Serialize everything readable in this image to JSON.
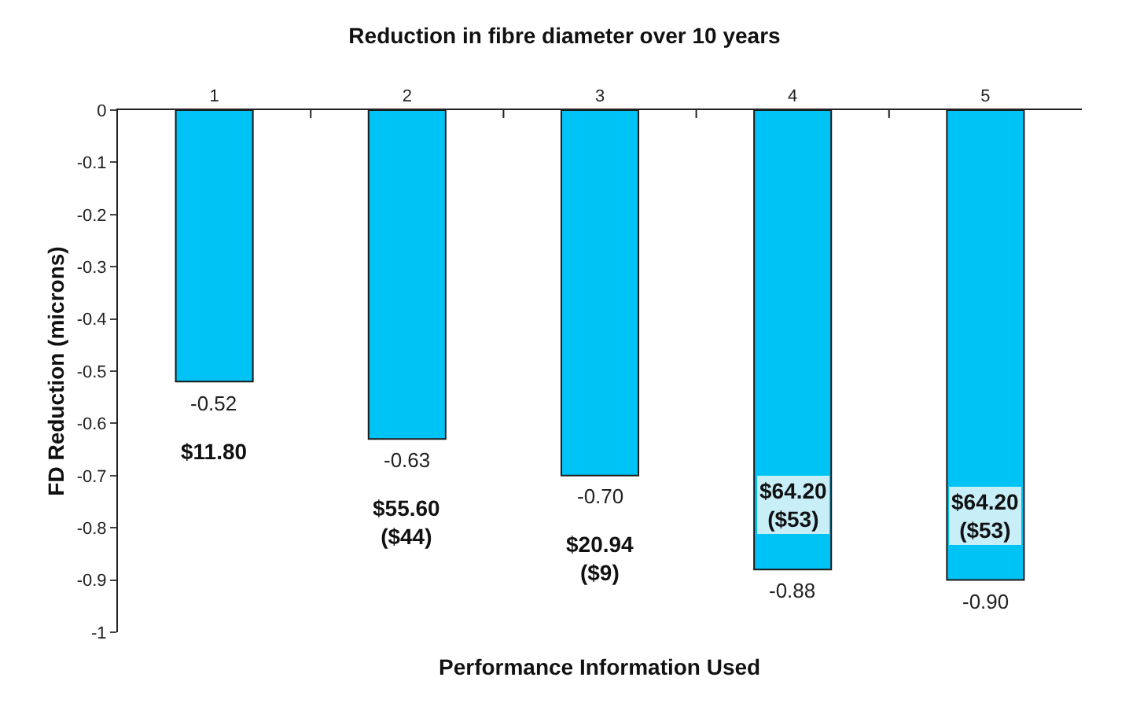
{
  "chart_data": {
    "type": "bar",
    "title": "Reduction in fibre diameter over 10 years",
    "xlabel": "Performance Information Used",
    "ylabel": "FD Reduction (microns)",
    "categories": [
      "1",
      "2",
      "3",
      "4",
      "5"
    ],
    "values": [
      -0.52,
      -0.63,
      -0.7,
      -0.88,
      -0.9
    ],
    "value_labels": [
      "-0.52",
      "-0.63",
      "-0.70",
      "-0.88",
      "-0.90"
    ],
    "color": "#00c3f5",
    "ylim": [
      -1,
      0
    ],
    "yticks": [
      0,
      -0.1,
      -0.2,
      -0.3,
      -0.4,
      -0.5,
      -0.6,
      -0.7,
      -0.8,
      -0.9,
      -1
    ],
    "annotations": [
      "$11.80",
      "$55.60\n($44)",
      "$20.94\n($9)",
      "$64.20\n($53)",
      "$64.20\n($53)"
    ]
  }
}
